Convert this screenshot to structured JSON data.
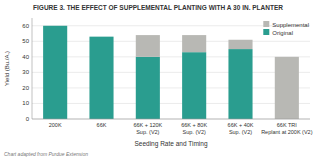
{
  "chart_data": {
    "type": "bar",
    "stacked": true,
    "title": "FIGURE 3. THE EFFECT OF SUPPLEMENTAL PLANTING WITH A 30 IN. PLANTER",
    "categories": [
      "200K",
      "66K",
      "66K + 120K\nSup. (V2)",
      "66K + 80K\nSup. (V2)",
      "66K + 40K\nSup. (V2)",
      "66K TRI\nReplant at 200K (V2)"
    ],
    "series": [
      {
        "name": "Original",
        "color": "#2a9d8f",
        "values": [
          60,
          53,
          40,
          43,
          45,
          0
        ]
      },
      {
        "name": "Supplemental",
        "color": "#b8b8b4",
        "values": [
          0,
          0,
          14,
          11,
          6,
          40
        ]
      }
    ],
    "x_label": "Seeding Rate and Timing",
    "y_label": "Yield (Bu./A.)",
    "ylim": [
      0,
      65
    ],
    "yticks": [
      0,
      10,
      20,
      30,
      40,
      50,
      60
    ],
    "grid": true,
    "legend": "upper-right",
    "footnote": "Chart adapted from Purdue Extension"
  }
}
